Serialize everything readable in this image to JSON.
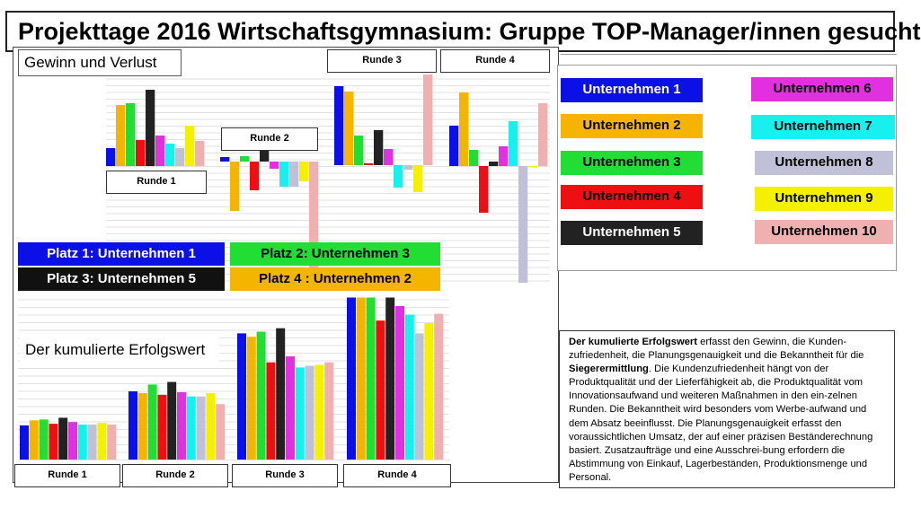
{
  "title": "Projekttage 2016 Wirtschaftsgymnasium: Gruppe TOP-Manager/innen gesucht",
  "company_labels": [
    "Unternehmen 1",
    "Unternehmen 2",
    "Unternehmen 3",
    "Unternehmen 4",
    "Unternehmen 5",
    "Unternehmen 6",
    "Unternehmen 7",
    "Unternehmen 8",
    "Unternehmen 9",
    "Unternehmen 10"
  ],
  "company_colors": [
    "#0a10e6",
    "#f5b400",
    "#22dd33",
    "#ee1010",
    "#222222",
    "#e030e0",
    "#18f0f0",
    "#c0c0d8",
    "#f5f000",
    "#f0b0b0"
  ],
  "chart_data": [
    {
      "type": "bar",
      "title": "Gewinn und Verlust",
      "categories": [
        "Runde 1",
        "Runde 2",
        "Runde 3",
        "Runde 4"
      ],
      "series": [
        {
          "name": "Unternehmen 1",
          "values": [
            20,
            5,
            88,
            45
          ]
        },
        {
          "name": "Unternehmen 2",
          "values": [
            68,
            -55,
            82,
            82
          ]
        },
        {
          "name": "Unternehmen 3",
          "values": [
            70,
            6,
            33,
            18
          ]
        },
        {
          "name": "Unternehmen 4",
          "values": [
            29,
            -32,
            2,
            -52
          ]
        },
        {
          "name": "Unternehmen 5",
          "values": [
            85,
            12,
            39,
            5
          ]
        },
        {
          "name": "Unternehmen 6",
          "values": [
            34,
            -8,
            18,
            22
          ]
        },
        {
          "name": "Unternehmen 7",
          "values": [
            25,
            -28,
            -25,
            50
          ]
        },
        {
          "name": "Unternehmen 8",
          "values": [
            20,
            -28,
            -5,
            -130
          ]
        },
        {
          "name": "Unternehmen 9",
          "values": [
            45,
            -22,
            -30,
            0
          ]
        },
        {
          "name": "Unternehmen 10",
          "values": [
            28,
            -120,
            101,
            70
          ]
        }
      ]
    },
    {
      "type": "bar",
      "title": "Der kumulierte Erfolgswert",
      "categories": [
        "Runde 1",
        "Runde 2",
        "Runde 3",
        "Runde 4"
      ],
      "series": [
        {
          "name": "Unternehmen 1",
          "values": [
            40,
            80,
            148,
            190
          ]
        },
        {
          "name": "Unternehmen 2",
          "values": [
            46,
            78,
            144,
            190
          ]
        },
        {
          "name": "Unternehmen 3",
          "values": [
            47,
            88,
            150,
            190
          ]
        },
        {
          "name": "Unternehmen 4",
          "values": [
            42,
            76,
            114,
            163
          ]
        },
        {
          "name": "Unternehmen 5",
          "values": [
            49,
            91,
            154,
            190
          ]
        },
        {
          "name": "Unternehmen 6",
          "values": [
            44,
            79,
            121,
            180
          ]
        },
        {
          "name": "Unternehmen 7",
          "values": [
            41,
            74,
            108,
            170
          ]
        },
        {
          "name": "Unternehmen 8",
          "values": [
            41,
            74,
            110,
            148
          ]
        },
        {
          "name": "Unternehmen 9",
          "values": [
            43,
            78,
            111,
            160
          ]
        },
        {
          "name": "Unternehmen 10",
          "values": [
            41,
            65,
            114,
            171
          ]
        }
      ]
    }
  ],
  "round_labels_top": [
    "Runde 1",
    "Runde 2",
    "Runde 3",
    "Runde 4"
  ],
  "round_labels_bottom": [
    "Runde 1",
    "Runde 2",
    "Runde 3",
    "Runde 4"
  ],
  "section_labels": {
    "gv": "Gewinn und Verlust",
    "ke": "Der kumulierte Erfolgswert"
  },
  "ranking": [
    {
      "text": "Platz 1: Unternehmen 1",
      "bg": "#0a10e6",
      "fg": "#ffffff"
    },
    {
      "text": "Platz 2: Unternehmen 3",
      "bg": "#22dd33",
      "fg": "#000000"
    },
    {
      "text": "Platz 3: Unternehmen 5",
      "bg": "#111111",
      "fg": "#ffffff"
    },
    {
      "text": "Platz 4 : Unternehmen 2",
      "bg": "#f5b400",
      "fg": "#000000"
    }
  ],
  "description": {
    "lead_bold": "Der kumulierte Erfolgswert",
    "part1": " erfasst den Gewinn, die Kunden-zufriedenheit, die Planungsgenauigkeit und die Bekanntheit für die ",
    "bold2": "Siegerermittlung",
    "part2": ". Die Kundenzufriedenheit hängt von der Produktqualität und der Lieferfähigkeit ab, die Produktqualität vom Innovationsaufwand und weiteren Maßnahmen in den ein-zelnen Runden. Die Bekanntheit wird besonders vom Werbe-aufwand und dem Absatz beeinflusst. Die Planungsgenauigkeit erfasst den voraussichtlichen Umsatz, der auf einer präzisen Beständerechnung basiert. Zusatzaufträge und eine Ausschrei-bung erfordern die Abstimmung von Einkauf, Lagerbeständen, Produktionsmenge und Personal."
  }
}
